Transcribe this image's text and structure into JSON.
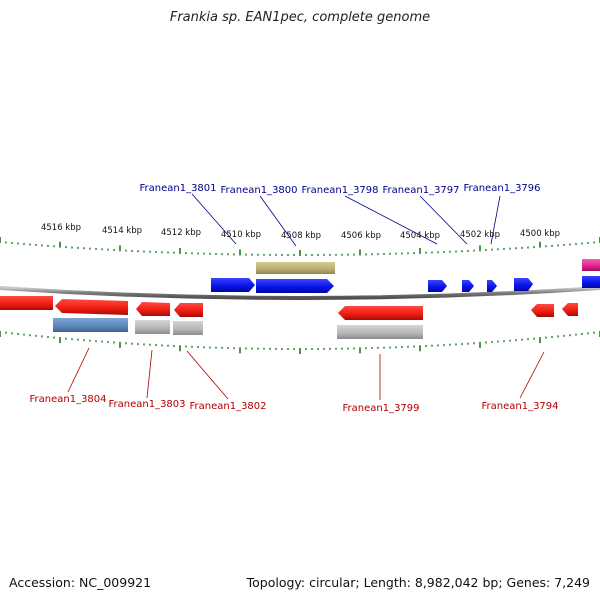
{
  "title": "Frankia sp. EAN1pec, complete genome",
  "footer": {
    "accession": "Accession: NC_009921",
    "stats": "Topology: circular; Length: 8,982,042 bp; Genes: 7,249"
  },
  "colors": {
    "forward_gene": "#0a14e8",
    "reverse_gene": "#f01e14",
    "cds_blue": "#5b86b8",
    "cds_gray": "#b4b4b4",
    "other_feature": "#b8ae70",
    "pink_feature": "#e0208c",
    "tick": "#1f7a1f",
    "forward_label": "#00008b",
    "reverse_label": "#b00000"
  },
  "scale_labels": [
    "4516 kbp",
    "4514 kbp",
    "4512 kbp",
    "4510 kbp",
    "4508 kbp",
    "4506 kbp",
    "4504 kbp",
    "4502 kbp",
    "4500 kbp"
  ],
  "forward_labels": [
    "Franean1_3801",
    "Franean1_3800",
    "Franean1_3798",
    "Franean1_3797",
    "Franean1_3796"
  ],
  "reverse_labels": [
    "Franean1_3804",
    "Franean1_3803",
    "Franean1_3802",
    "Franean1_3799",
    "Franean1_3794"
  ]
}
